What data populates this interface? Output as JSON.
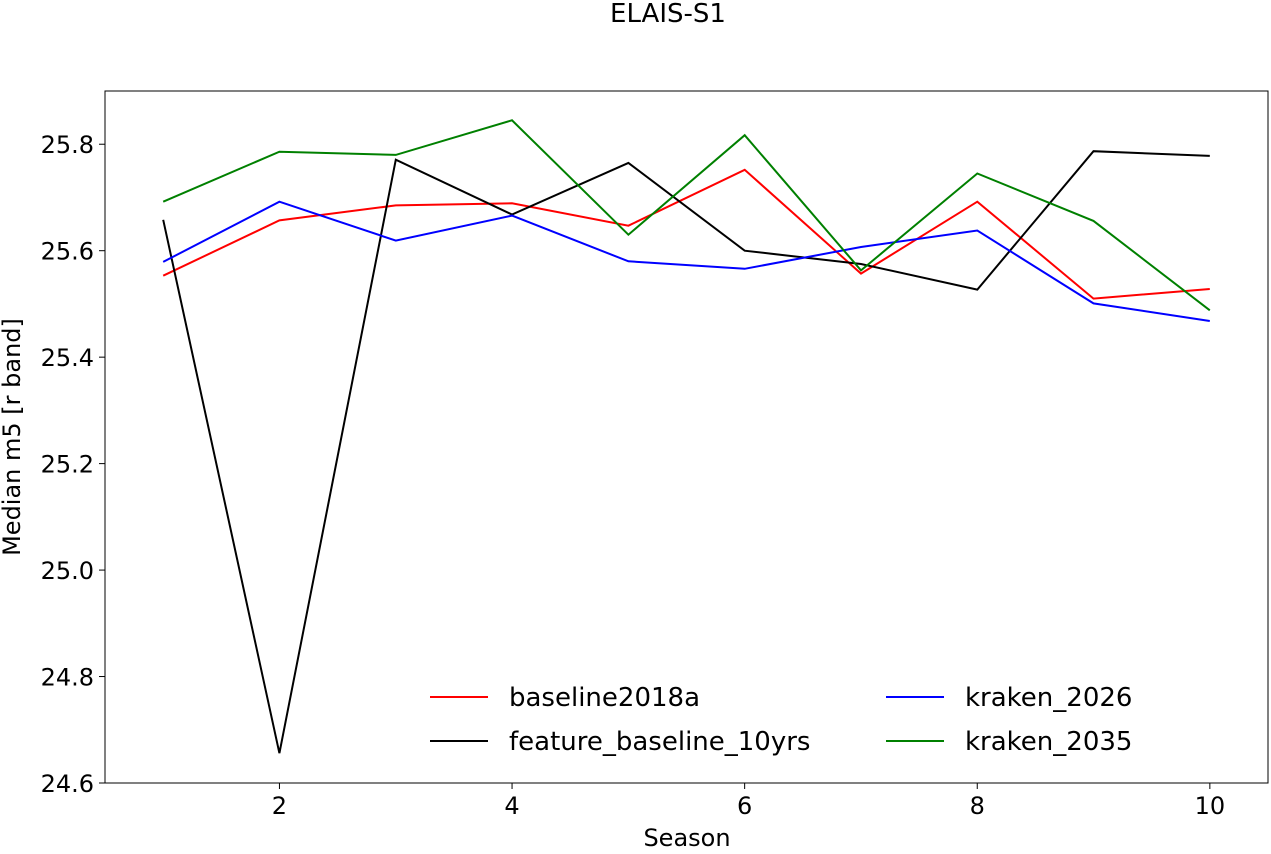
{
  "chart_data": {
    "type": "line",
    "title": "ELAIS-S1",
    "xlabel": "Season",
    "ylabel": "Median m5 [r band]",
    "x": [
      1,
      2,
      3,
      4,
      5,
      6,
      7,
      8,
      9,
      10
    ],
    "xlim": [
      0.5,
      10.5
    ],
    "ylim": [
      24.6,
      25.9
    ],
    "xticks": [
      2,
      4,
      6,
      8,
      10
    ],
    "yticks": [
      24.6,
      24.8,
      25.0,
      25.2,
      25.4,
      25.6,
      25.8
    ],
    "grid": false,
    "legend_position": "lower-center",
    "series": [
      {
        "name": "baseline2018a",
        "color": "#ff0000",
        "values": [
          25.553,
          25.657,
          25.685,
          25.689,
          25.647,
          25.752,
          25.557,
          25.692,
          25.51,
          25.528
        ]
      },
      {
        "name": "feature_baseline_10yrs",
        "color": "#000000",
        "values": [
          25.658,
          24.656,
          25.771,
          25.668,
          25.765,
          25.6,
          25.575,
          25.527,
          25.787,
          25.778
        ]
      },
      {
        "name": "kraken_2026",
        "color": "#0000ff",
        "values": [
          25.579,
          25.692,
          25.619,
          25.666,
          25.58,
          25.566,
          25.607,
          25.638,
          25.501,
          25.468
        ]
      },
      {
        "name": "kraken_2035",
        "color": "#008000",
        "values": [
          25.692,
          25.786,
          25.78,
          25.845,
          25.63,
          25.817,
          25.563,
          25.745,
          25.656,
          25.488
        ]
      }
    ]
  }
}
